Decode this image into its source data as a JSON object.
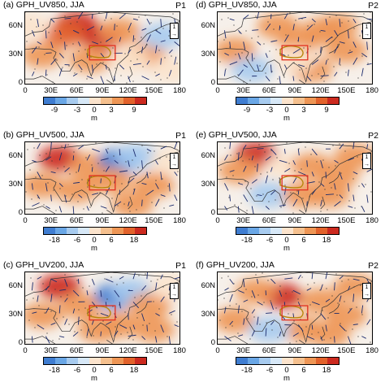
{
  "panels": [
    {
      "id": "a",
      "title": "(a) GPH_UV850, JJA",
      "tag": "P1",
      "cbar_ticks": [
        "-9",
        "-3",
        "0",
        "3",
        "9"
      ],
      "unit": "m",
      "ref": "1",
      "field": [
        {
          "lon": 60,
          "lat": 62,
          "v": 9
        },
        {
          "lon": 90,
          "lat": 48,
          "v": 9
        },
        {
          "lon": 45,
          "lat": 52,
          "v": 6
        },
        {
          "lon": 110,
          "lat": 55,
          "v": 3
        },
        {
          "lon": 140,
          "lat": 30,
          "v": 3
        },
        {
          "lon": 20,
          "lat": 30,
          "v": 3
        },
        {
          "lon": 160,
          "lat": 50,
          "v": -3
        },
        {
          "lon": 120,
          "lat": 25,
          "v": 0
        },
        {
          "lon": 75,
          "lat": 25,
          "v": 3
        },
        {
          "lon": 5,
          "lat": 60,
          "v": 0
        },
        {
          "lon": 170,
          "lat": 15,
          "v": 0
        }
      ]
    },
    {
      "id": "d",
      "title": "(d) GPH_UV850, JJA",
      "tag": "P2",
      "cbar_ticks": [
        "-9",
        "-3",
        "0",
        "3",
        "9"
      ],
      "unit": "m",
      "ref": "1",
      "field": [
        {
          "lon": 70,
          "lat": 60,
          "v": 3
        },
        {
          "lon": 95,
          "lat": 45,
          "v": 3
        },
        {
          "lon": 20,
          "lat": 35,
          "v": 3
        },
        {
          "lon": 40,
          "lat": 15,
          "v": -3
        },
        {
          "lon": 120,
          "lat": 55,
          "v": 3
        },
        {
          "lon": 150,
          "lat": 35,
          "v": 3
        },
        {
          "lon": 140,
          "lat": 60,
          "v": 3
        },
        {
          "lon": 110,
          "lat": 15,
          "v": 3
        },
        {
          "lon": 90,
          "lat": 25,
          "v": 0
        }
      ]
    },
    {
      "id": "b",
      "title": "(b) GPH_UV500, JJA",
      "tag": "P1",
      "cbar_ticks": [
        "-18",
        "-6",
        "0",
        "6",
        "18"
      ],
      "unit": "m",
      "ref": "1",
      "field": [
        {
          "lon": 40,
          "lat": 58,
          "v": 18
        },
        {
          "lon": 75,
          "lat": 50,
          "v": 6
        },
        {
          "lon": 110,
          "lat": 55,
          "v": -18
        },
        {
          "lon": 130,
          "lat": 60,
          "v": -6
        },
        {
          "lon": 20,
          "lat": 30,
          "v": 6
        },
        {
          "lon": 100,
          "lat": 35,
          "v": 6
        },
        {
          "lon": 150,
          "lat": 30,
          "v": 6
        },
        {
          "lon": 60,
          "lat": 25,
          "v": 6
        },
        {
          "lon": 170,
          "lat": 55,
          "v": 0
        },
        {
          "lon": 125,
          "lat": 10,
          "v": 6
        }
      ]
    },
    {
      "id": "e",
      "title": "(e) GPH_UV500, JJA",
      "tag": "P2",
      "cbar_ticks": [
        "-18",
        "-6",
        "0",
        "6",
        "18"
      ],
      "unit": "m",
      "ref": "1",
      "field": [
        {
          "lon": 45,
          "lat": 62,
          "v": 18
        },
        {
          "lon": 25,
          "lat": 45,
          "v": 6
        },
        {
          "lon": 80,
          "lat": 50,
          "v": 0
        },
        {
          "lon": 110,
          "lat": 50,
          "v": 6
        },
        {
          "lon": 140,
          "lat": 40,
          "v": 6
        },
        {
          "lon": 60,
          "lat": 20,
          "v": -6
        },
        {
          "lon": 100,
          "lat": 20,
          "v": 6
        },
        {
          "lon": 160,
          "lat": 60,
          "v": 6
        },
        {
          "lon": 130,
          "lat": 20,
          "v": 6
        }
      ]
    },
    {
      "id": "c",
      "title": "(c) GPH_UV200, JJA",
      "tag": "P1",
      "cbar_ticks": [
        "-18",
        "-6",
        "0",
        "6",
        "18"
      ],
      "unit": "m",
      "ref": "1",
      "field": [
        {
          "lon": 40,
          "lat": 60,
          "v": 18
        },
        {
          "lon": 65,
          "lat": 40,
          "v": 6
        },
        {
          "lon": 105,
          "lat": 50,
          "v": -18
        },
        {
          "lon": 125,
          "lat": 55,
          "v": -6
        },
        {
          "lon": 20,
          "lat": 30,
          "v": 6
        },
        {
          "lon": 145,
          "lat": 40,
          "v": 6
        },
        {
          "lon": 85,
          "lat": 15,
          "v": 6
        },
        {
          "lon": 150,
          "lat": 15,
          "v": 6
        },
        {
          "lon": 170,
          "lat": 60,
          "v": 0
        },
        {
          "lon": 110,
          "lat": 20,
          "v": 6
        }
      ]
    },
    {
      "id": "f",
      "title": "(f) GPH_UV200, JJA",
      "tag": "P2",
      "cbar_ticks": [
        "-18",
        "-6",
        "0",
        "6",
        "18"
      ],
      "unit": "m",
      "ref": "1",
      "field": [
        {
          "lon": 75,
          "lat": 50,
          "v": 18
        },
        {
          "lon": 45,
          "lat": 55,
          "v": 6
        },
        {
          "lon": 120,
          "lat": 45,
          "v": 6
        },
        {
          "lon": 20,
          "lat": 25,
          "v": 6
        },
        {
          "lon": 150,
          "lat": 30,
          "v": 6
        },
        {
          "lon": 100,
          "lat": 15,
          "v": 6
        },
        {
          "lon": 60,
          "lat": 15,
          "v": -6
        },
        {
          "lon": 160,
          "lat": 60,
          "v": 6
        },
        {
          "lon": 130,
          "lat": 10,
          "v": 6
        }
      ]
    }
  ],
  "axes": {
    "x_ticks": [
      "0",
      "30E",
      "60E",
      "90E",
      "120E",
      "150E",
      "180"
    ],
    "x_values": [
      0,
      30,
      60,
      90,
      120,
      150,
      180
    ],
    "y_ticks": [
      "60N",
      "30N",
      "0"
    ],
    "y_values": [
      60,
      30,
      0
    ],
    "lon_range": [
      0,
      180
    ],
    "lat_range": [
      0,
      75
    ]
  },
  "region_box": {
    "lon": [
      75,
      105
    ],
    "lat": [
      25,
      40
    ]
  },
  "colors": {
    "scale": [
      "#3f7dd1",
      "#6aa7e6",
      "#a7cbef",
      "#d7e8f7",
      "#fbe3cc",
      "#f5c08e",
      "#ee9655",
      "#e2622b",
      "#cc2a1f"
    ],
    "box": "#e03020",
    "plateau": "#b8860b",
    "vector": "#1a2a6c"
  }
}
